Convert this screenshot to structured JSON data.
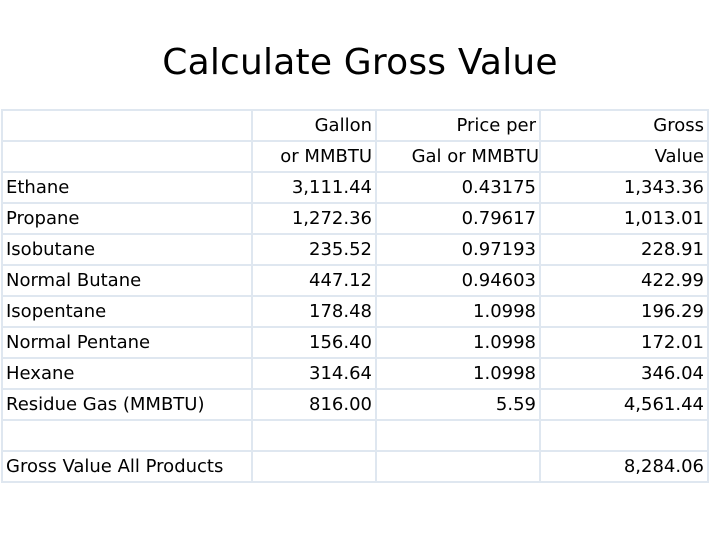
{
  "slide": {
    "title": "Calculate Gross Value"
  },
  "table": {
    "header_rows": [
      [
        "",
        "Gallon",
        "Price per",
        "Gross"
      ],
      [
        "",
        "or MMBTU",
        "Gal or MMBTU",
        "Value"
      ]
    ],
    "rows": [
      [
        "Ethane",
        "3,111.44",
        "0.43175",
        "1,343.36"
      ],
      [
        "Propane",
        "1,272.36",
        "0.79617",
        "1,013.01"
      ],
      [
        "Isobutane",
        "235.52",
        "0.97193",
        "228.91"
      ],
      [
        "Normal Butane",
        "447.12",
        "0.94603",
        "422.99"
      ],
      [
        "Isopentane",
        "178.48",
        "1.0998",
        "196.29"
      ],
      [
        "Normal Pentane",
        "156.40",
        "1.0998",
        "172.01"
      ],
      [
        "Hexane",
        "314.64",
        "1.0998",
        "346.04"
      ],
      [
        "Residue Gas (MMBTU)",
        "816.00",
        "5.59",
        "4,561.44"
      ]
    ],
    "blank_row": [
      "",
      "",
      "",
      ""
    ],
    "total_row": [
      "Gross Value All Products",
      "",
      "",
      "8,284.06"
    ]
  }
}
